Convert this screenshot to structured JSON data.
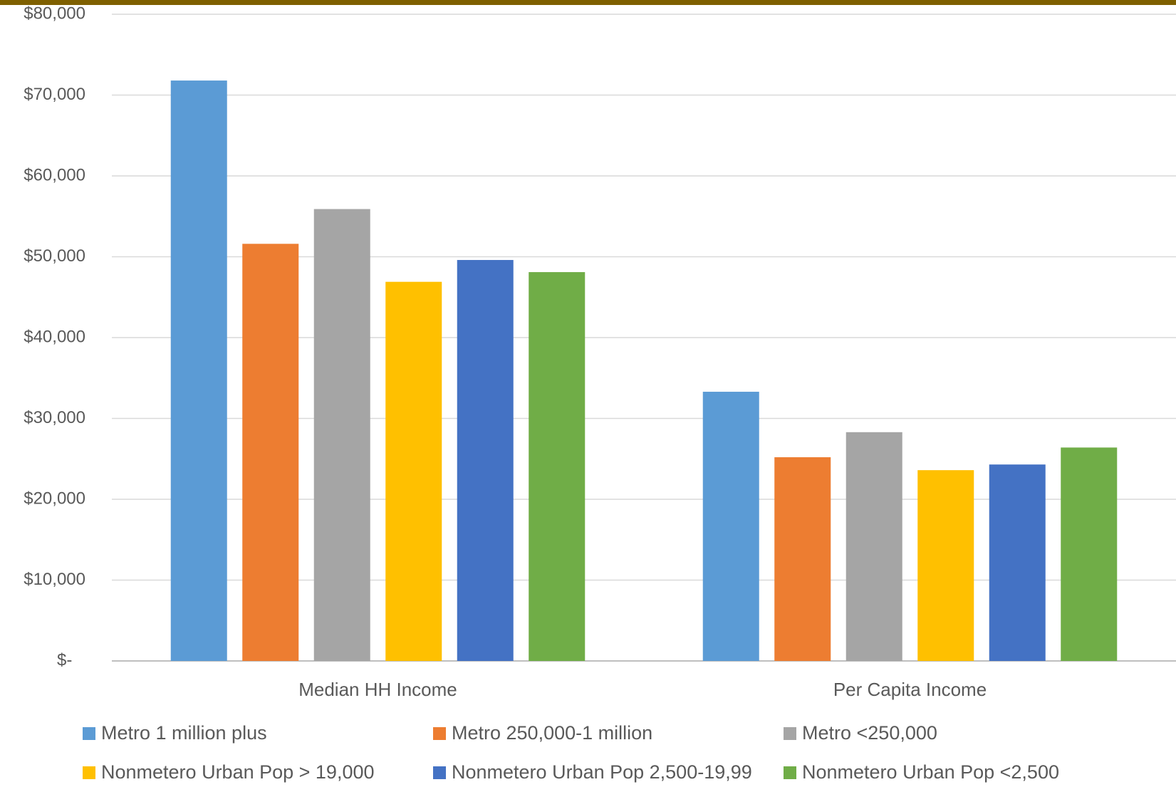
{
  "chart_data": {
    "type": "bar",
    "categories": [
      "Median HH Income",
      "Per Capita Income"
    ],
    "series": [
      {
        "name": "Metro 1 million plus",
        "color": "#5b9bd5",
        "values": [
          71800,
          33300
        ]
      },
      {
        "name": "Metro 250,000-1 million",
        "color": "#ed7d31",
        "values": [
          51600,
          25200
        ]
      },
      {
        "name": "Metro <250,000",
        "color": "#a5a5a5",
        "values": [
          55900,
          28300
        ]
      },
      {
        "name": "Nonmetero Urban Pop > 19,000",
        "color": "#ffc000",
        "values": [
          46900,
          23600
        ]
      },
      {
        "name": "Nonmetero Urban Pop 2,500-19,99",
        "color": "#4472c4",
        "values": [
          49600,
          24300
        ]
      },
      {
        "name": "Nonmetero Urban Pop <2,500",
        "color": "#70ad47",
        "values": [
          48100,
          26400
        ]
      }
    ],
    "ylim": [
      0,
      80000
    ],
    "yticks": [
      0,
      10000,
      20000,
      30000,
      40000,
      50000,
      60000,
      70000,
      80000
    ],
    "ytick_labels": [
      "$-",
      "$10,000",
      "$20,000",
      "$30,000",
      "$40,000",
      "$50,000",
      "$60,000",
      "$70,000",
      "$80,000"
    ],
    "grid": true,
    "legend_position": "bottom",
    "title": "",
    "xlabel": "",
    "ylabel": ""
  }
}
